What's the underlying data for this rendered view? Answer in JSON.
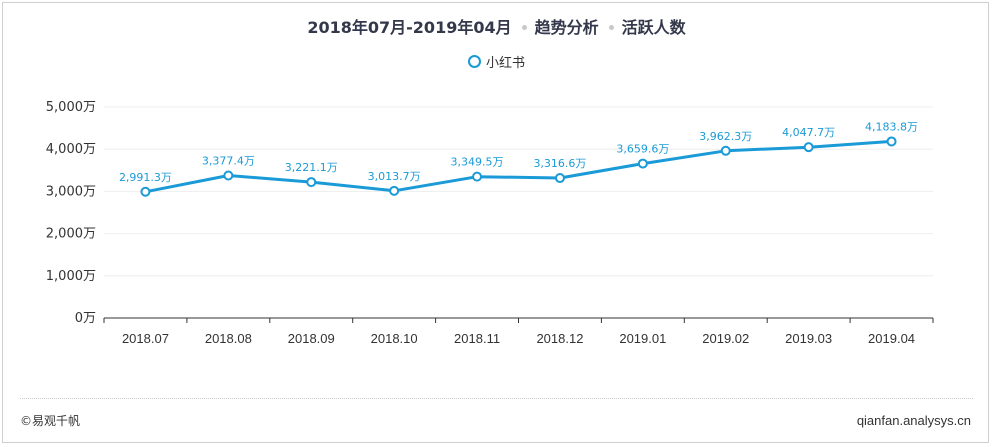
{
  "header": {
    "period": "2018年07月-2019年04月",
    "section": "趋势分析",
    "metric": "活跃人数"
  },
  "legend": {
    "items": [
      "小红书"
    ]
  },
  "footer": {
    "copyright": "©易观千帆",
    "site": "qianfan.analysys.cn"
  },
  "colors": {
    "series": "#1a9ad6",
    "axis_text": "#333333",
    "grid": "#eeeeee"
  },
  "chart_data": {
    "type": "line",
    "title": "2018年07月-2019年04月 趋势分析 活跃人数",
    "categories": [
      "2018.07",
      "2018.08",
      "2018.09",
      "2018.10",
      "2018.11",
      "2018.12",
      "2019.01",
      "2019.02",
      "2019.03",
      "2019.04"
    ],
    "series": [
      {
        "name": "小红书",
        "values": [
          2991.3,
          3377.4,
          3221.1,
          3013.7,
          3349.5,
          3316.6,
          3659.6,
          3962.3,
          4047.7,
          4183.8
        ],
        "labels": [
          "2,991.3万",
          "3,377.4万",
          "3,221.1万",
          "3,013.7万",
          "3,349.5万",
          "3,316.6万",
          "3,659.6万",
          "3,962.3万",
          "4,047.7万",
          "4,183.8万"
        ]
      }
    ],
    "ylim": [
      0,
      5000
    ],
    "yticks": [
      0,
      1000,
      2000,
      3000,
      4000,
      5000
    ],
    "ytick_labels": [
      "0万",
      "1,000万",
      "2,000万",
      "3,000万",
      "4,000万",
      "5,000万"
    ],
    "xlabel": "",
    "ylabel": "",
    "grid": true,
    "legend_position": "top-center"
  }
}
